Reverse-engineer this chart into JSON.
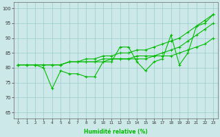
{
  "x": [
    0,
    1,
    2,
    3,
    4,
    5,
    6,
    7,
    8,
    9,
    10,
    11,
    12,
    13,
    14,
    15,
    16,
    17,
    18,
    19,
    20,
    21,
    22,
    23
  ],
  "line_main": [
    81,
    81,
    81,
    80,
    73,
    79,
    78,
    78,
    77,
    77,
    82,
    82,
    87,
    87,
    82,
    79,
    82,
    83,
    91,
    81,
    85,
    94,
    95,
    98
  ],
  "line_upper": [
    81,
    81,
    81,
    81,
    81,
    81,
    82,
    82,
    83,
    83,
    84,
    84,
    85,
    85,
    86,
    86,
    87,
    88,
    89,
    90,
    92,
    94,
    96,
    98
  ],
  "line_middle": [
    81,
    81,
    81,
    81,
    81,
    81,
    82,
    82,
    82,
    82,
    83,
    83,
    83,
    83,
    84,
    84,
    84,
    85,
    86,
    87,
    89,
    91,
    93,
    95
  ],
  "line_lower": [
    81,
    81,
    81,
    81,
    81,
    81,
    82,
    82,
    82,
    82,
    82,
    83,
    83,
    83,
    83,
    83,
    84,
    84,
    84,
    85,
    86,
    87,
    88,
    90
  ],
  "bg_color": "#cce8e8",
  "grid_color": "#99cccc",
  "line_color": "#00bb00",
  "ylabel_vals": [
    65,
    70,
    75,
    80,
    85,
    90,
    95,
    100
  ],
  "xlabel": "Humidité relative (%)",
  "xlim": [
    -0.5,
    23.5
  ],
  "ylim": [
    63,
    102
  ]
}
